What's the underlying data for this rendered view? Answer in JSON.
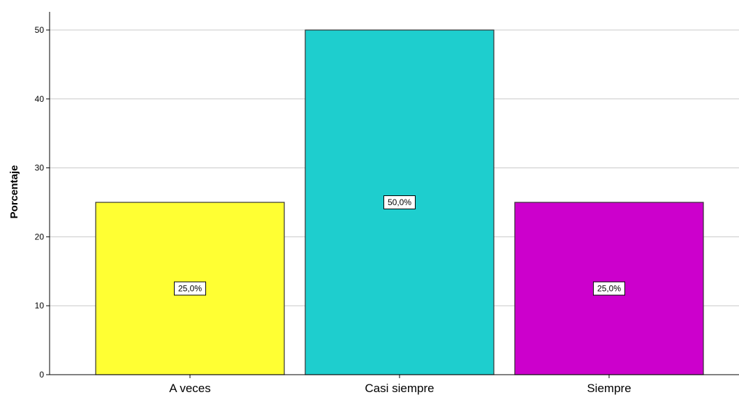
{
  "chart_data": {
    "type": "bar",
    "categories": [
      "A veces",
      "Casi siempre",
      "Siempre"
    ],
    "values": [
      25,
      50,
      25
    ],
    "data_labels": [
      "25,0%",
      "50,0%",
      "25,0%"
    ],
    "colors": [
      "#ffff33",
      "#1ecece",
      "#cc00cc"
    ],
    "title": "",
    "xlabel": "",
    "ylabel": "Porcentaje",
    "ylim": [
      0,
      50
    ],
    "yticks": [
      0,
      10,
      20,
      30,
      40,
      50
    ],
    "grid": true
  }
}
